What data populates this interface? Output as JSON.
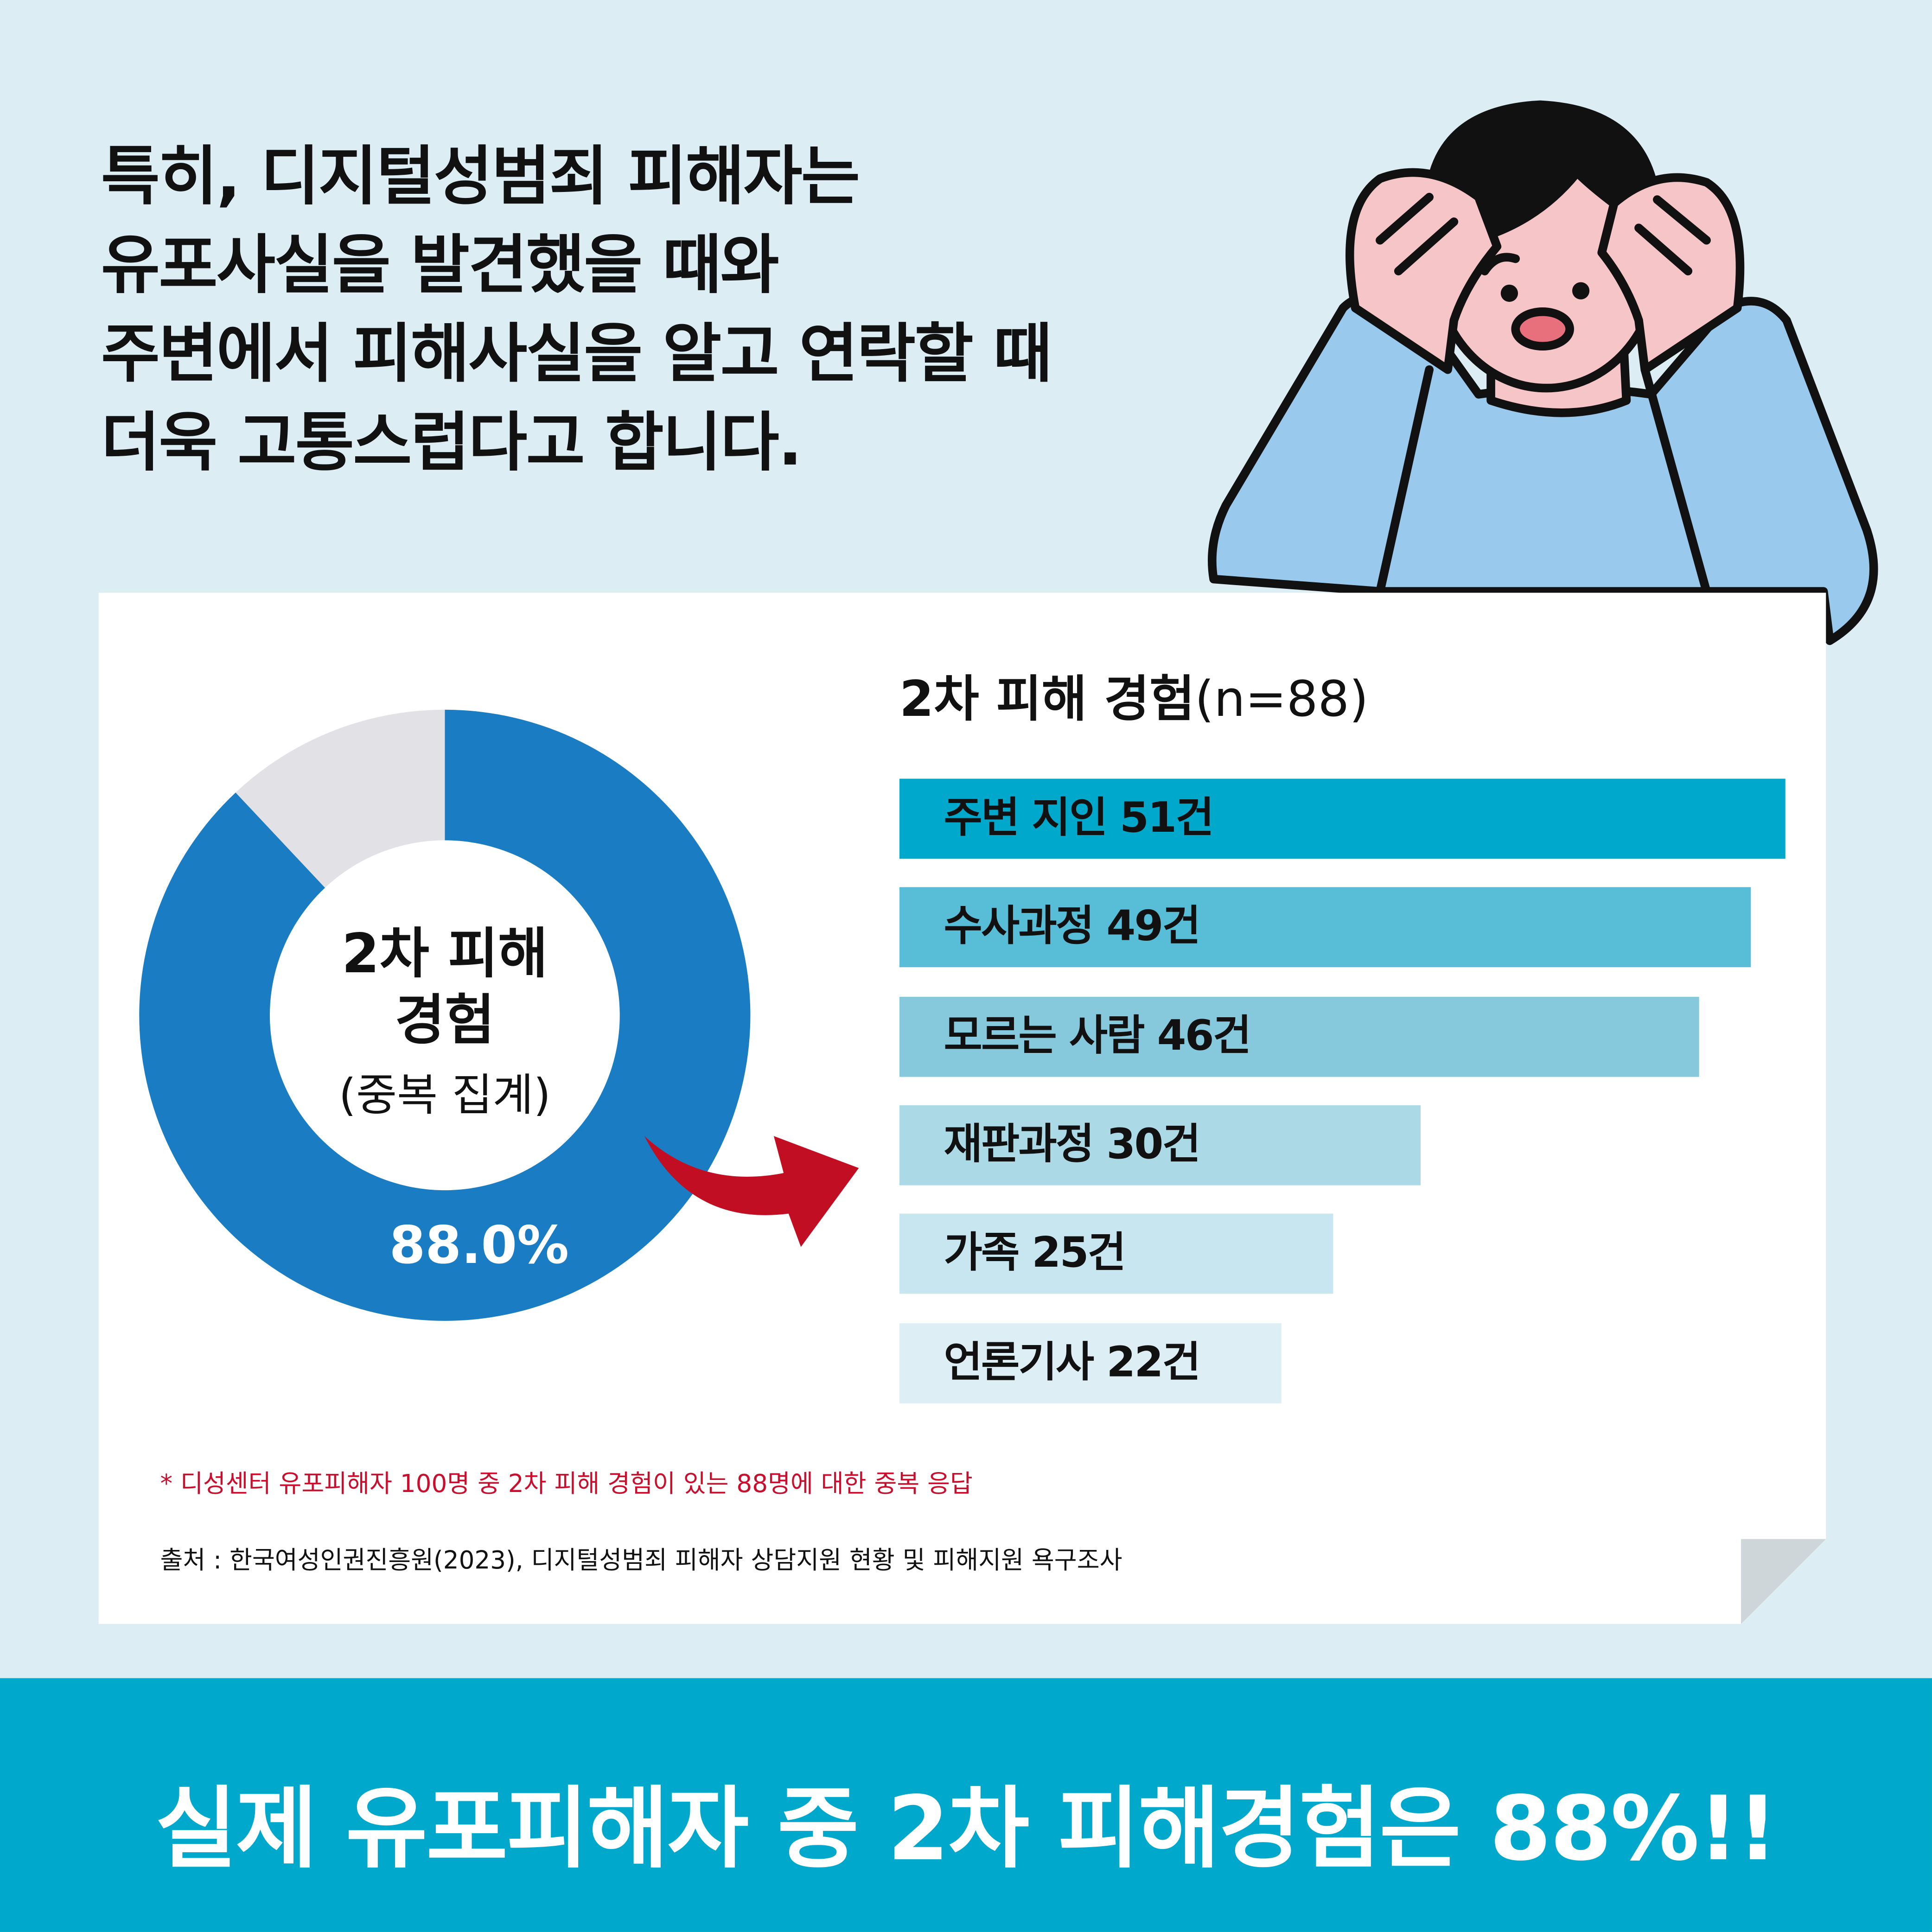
{
  "headline": [
    "특히, 디지털성범죄 피해자는",
    "유포사실을 발견했을 때와",
    "주변에서 피해사실을 알고 연락할 때",
    "더욱 고통스럽다고 합니다."
  ],
  "chart_data": [
    {
      "type": "pie",
      "donut": true,
      "center_label": [
        "2차 피해",
        "경험",
        "(중복 집계)"
      ],
      "slices": [
        {
          "label": "2차 피해 경험",
          "value": 88.0,
          "color": "#1a7dc4",
          "data_label": "88.0%"
        },
        {
          "label": "",
          "value": 12.0,
          "color": "#e2e2e6"
        }
      ]
    },
    {
      "type": "bar",
      "orientation": "horizontal",
      "title": "2차 피해 경험",
      "title_suffix": "(n=88)",
      "categories": [
        "주변 지인",
        "수사과정",
        "모르는 사람",
        "재판과정",
        "가족",
        "언론기사"
      ],
      "values": [
        51,
        49,
        46,
        30,
        25,
        22
      ],
      "labels": [
        "주변 지인 51건",
        "수사과정 49건",
        "모르는 사람 46건",
        "재판과정 30건",
        "가족 25건",
        "언론기사 22건"
      ],
      "colors": [
        "#00a9cc",
        "#58bdd6",
        "#86c9dc",
        "#abd9e6",
        "#c8e6ef",
        "#ddeef5"
      ]
    }
  ],
  "note": "* 디성센터 유포피해자 100명 중 2차 피해 경험이 있는 88명에 대한 중복 응답",
  "source": "출처 : 한국여성인권진흥원(2023), 디지털성범죄 피해자 상담지원 현황 및 피해지원 욕구조사",
  "banner": "실제 유포피해자 중 2차 피해경험은 88%!!",
  "colors": {
    "background": "#dcedf4",
    "banner": "#00a9cc",
    "arrow": "#c20e22",
    "note": "#c8102e"
  }
}
